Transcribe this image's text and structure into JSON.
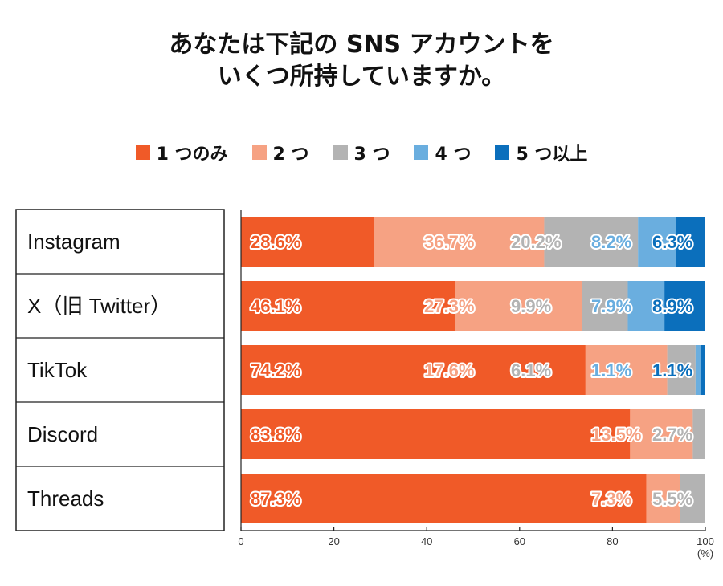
{
  "chart_data": {
    "type": "bar",
    "orientation": "horizontal-stacked",
    "title_lines": [
      "あなたは下記の SNS アカウントを",
      "いくつ所持していますか。"
    ],
    "categories": [
      "Instagram",
      "X（旧 Twitter）",
      "TikTok",
      "Discord",
      "Threads"
    ],
    "series": [
      {
        "name": "1 つのみ",
        "color": "#f05a28",
        "values": [
          28.6,
          46.1,
          74.2,
          83.8,
          87.3
        ]
      },
      {
        "name": "2 つ",
        "color": "#f6a283",
        "values": [
          36.7,
          27.3,
          17.6,
          13.5,
          7.3
        ]
      },
      {
        "name": "3 つ",
        "color": "#b3b3b3",
        "values": [
          20.2,
          9.9,
          6.1,
          2.7,
          5.5
        ]
      },
      {
        "name": "4 つ",
        "color": "#6aaedf",
        "values": [
          8.2,
          7.9,
          1.1,
          null,
          null
        ]
      },
      {
        "name": "5 つ以上",
        "color": "#0b6fbc",
        "values": [
          6.3,
          8.9,
          1.1,
          null,
          null
        ]
      }
    ],
    "data_labels": [
      [
        "28.6%",
        "36.7%",
        "20.2%",
        "8.2%",
        "6.3%"
      ],
      [
        "46.1%",
        "27.3%",
        "9.9%",
        "7.9%",
        "8.9%"
      ],
      [
        "74.2%",
        "17.6%",
        "6.1%",
        "1.1%",
        "1.1%"
      ],
      [
        "83.8%",
        "13.5%",
        "2.7%",
        "",
        ""
      ],
      [
        "87.3%",
        "7.3%",
        "5.5%",
        "",
        ""
      ]
    ],
    "xticks": [
      0,
      20,
      40,
      60,
      80,
      100
    ],
    "xlim": [
      0,
      100
    ],
    "xunit": "(%)",
    "legend_position": "top-center"
  }
}
